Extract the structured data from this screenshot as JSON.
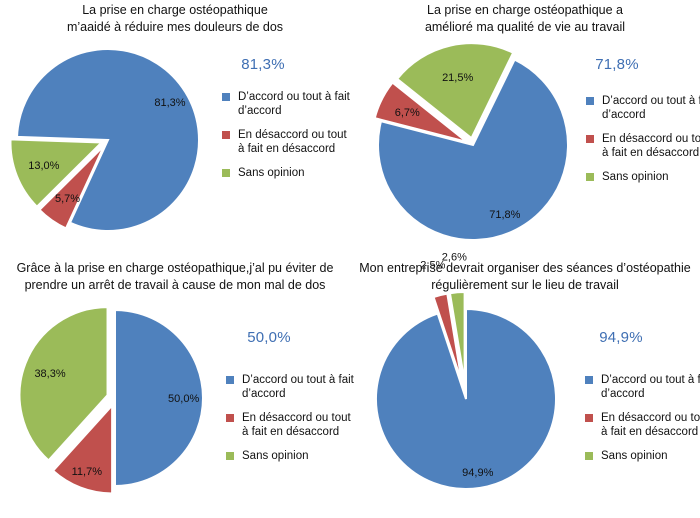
{
  "chart_data": [
    {
      "type": "pie",
      "title": "La prise en charge ostéopathique m’aaidé à réduire mes douleurs de dos",
      "headline": "81,3%",
      "slices": [
        {
          "label": "D’accord ou tout à fait d’accord",
          "value": 81.3,
          "display": "81,3%",
          "color": "#4f81bd"
        },
        {
          "label": "En désaccord ou tout à fait en désaccord",
          "value": 5.7,
          "display": "5,7%",
          "color": "#c0504d"
        },
        {
          "label": "Sans opinion",
          "value": 13.0,
          "display": "13,0%",
          "color": "#9bbb59"
        }
      ],
      "legend_position": "right"
    },
    {
      "type": "pie",
      "title": "La prise en charge ostéopathique a amélioré ma qualité de vie au travail",
      "headline": "71,8%",
      "slices": [
        {
          "label": "D’accord ou tout à fait d’accord",
          "value": 71.8,
          "display": "71,8%",
          "color": "#4f81bd"
        },
        {
          "label": "En désaccord ou tout à fait en désaccord",
          "value": 6.7,
          "display": "6,7%",
          "color": "#c0504d"
        },
        {
          "label": "Sans opinion",
          "value": 21.5,
          "display": "21,5%",
          "color": "#9bbb59"
        }
      ],
      "legend_position": "right"
    },
    {
      "type": "pie",
      "title": "Grâce à la prise en charge ostéopathique,j’al pu éviter de prendre un arrêt de travail à cause de mon mal de dos",
      "headline": "50,0%",
      "slices": [
        {
          "label": "D’accord ou tout à fait d’accord",
          "value": 50.0,
          "display": "50,0%",
          "color": "#4f81bd"
        },
        {
          "label": "En désaccord ou tout à fait en désaccord",
          "value": 11.7,
          "display": "11,7%",
          "color": "#c0504d"
        },
        {
          "label": "Sans opinion",
          "value": 38.3,
          "display": "38,3%",
          "color": "#9bbb59"
        }
      ],
      "legend_position": "right"
    },
    {
      "type": "pie",
      "title": "Mon entreprise devrait organiser des séances d’ostéopathie régulièrement sur le lieu de travail",
      "headline": "94,9%",
      "slices": [
        {
          "label": "D’accord ou tout à fait d’accord",
          "value": 94.9,
          "display": "94,9%",
          "color": "#4f81bd"
        },
        {
          "label": "En désaccord ou tout à fait en désaccord",
          "value": 2.5,
          "display": "2,5%",
          "color": "#c0504d"
        },
        {
          "label": "Sans opinion",
          "value": 2.6,
          "display": "2,6%",
          "color": "#9bbb59"
        }
      ],
      "legend_position": "right"
    }
  ],
  "legend": {
    "items": [
      {
        "label": "D’accord ou tout à fait d’accord",
        "color": "#4f81bd"
      },
      {
        "label": "En désaccord ou tout à fait en désaccord",
        "color": "#c0504d"
      },
      {
        "label": "Sans opinion",
        "color": "#9bbb59"
      }
    ]
  }
}
